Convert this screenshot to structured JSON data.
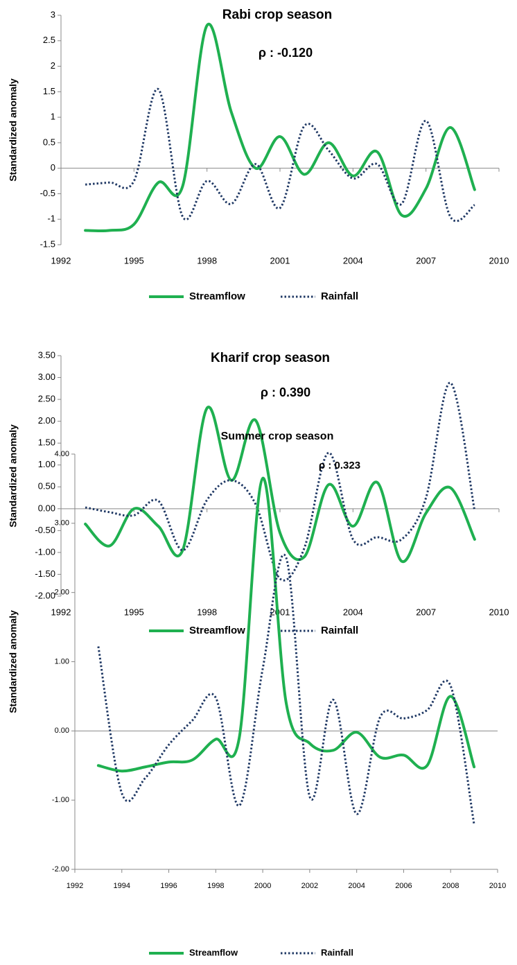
{
  "chart_data": [
    {
      "type": "line",
      "title": "Rabi crop season",
      "annotation": "ρ : -0.120",
      "y_label": "Standardized anomaly",
      "x": [
        1993,
        1994,
        1995,
        1996,
        1997,
        1998,
        1999,
        2000,
        2001,
        2002,
        2003,
        2004,
        2005,
        2006,
        2007,
        2008,
        2009
      ],
      "series": [
        {
          "name": "Streamflow",
          "color": "#1fb050",
          "style": "solid",
          "values": [
            -1.22,
            -1.22,
            -1.1,
            -0.28,
            -0.35,
            2.8,
            1.1,
            0.0,
            0.62,
            -0.12,
            0.5,
            -0.15,
            0.32,
            -0.92,
            -0.4,
            0.8,
            -0.42
          ]
        },
        {
          "name": "Rainfall",
          "color": "#1f3864",
          "style": "dotted",
          "values": [
            -0.32,
            -0.28,
            -0.25,
            1.55,
            -0.95,
            -0.25,
            -0.7,
            0.08,
            -0.78,
            0.83,
            0.35,
            -0.2,
            0.08,
            -0.7,
            0.93,
            -0.95,
            -0.72
          ]
        }
      ],
      "xlim": [
        1992,
        2010
      ],
      "xticks": [
        1992,
        1995,
        1998,
        2001,
        2004,
        2007,
        2010
      ],
      "ylim": [
        -1.5,
        3
      ],
      "yticks": [
        -1.5,
        -1,
        -0.5,
        0,
        0.5,
        1,
        1.5,
        2,
        2.5,
        3
      ],
      "legend": "bottom"
    },
    {
      "type": "line",
      "title": "Kharif crop season",
      "annotation": "ρ : 0.390",
      "y_label": "Standardized anomaly",
      "x": [
        1993,
        1994,
        1995,
        1996,
        1997,
        1998,
        1999,
        2000,
        2001,
        2002,
        2003,
        2004,
        2005,
        2006,
        2007,
        2008,
        2009
      ],
      "series": [
        {
          "name": "Streamflow",
          "color": "#1fb050",
          "style": "solid",
          "values": [
            -0.35,
            -0.85,
            0.0,
            -0.4,
            -0.95,
            2.3,
            0.65,
            2.02,
            -0.55,
            -1.1,
            0.55,
            -0.4,
            0.6,
            -1.2,
            -0.1,
            0.48,
            -0.7
          ]
        },
        {
          "name": "Rainfall",
          "color": "#1f3864",
          "style": "dotted",
          "values": [
            0.03,
            -0.08,
            -0.15,
            0.18,
            -0.95,
            0.2,
            0.65,
            0.1,
            -1.6,
            -0.9,
            1.28,
            -0.7,
            -0.65,
            -0.7,
            0.25,
            2.88,
            -0.05
          ]
        }
      ],
      "xlim": [
        1992,
        2010
      ],
      "xticks": [
        1992,
        1995,
        1998,
        2001,
        2004,
        2007,
        2010
      ],
      "ylim": [
        -2,
        3.5
      ],
      "yticks": [
        {
          "value": -2,
          "label": "-2.00"
        },
        {
          "value": -1.5,
          "label": "-1.50"
        },
        {
          "value": -1,
          "label": "-1.00"
        },
        {
          "value": -0.5,
          "label": "-0.50"
        },
        {
          "value": 0,
          "label": "0.00"
        },
        {
          "value": 0.5,
          "label": "0.50"
        },
        {
          "value": 1,
          "label": "1.00"
        },
        {
          "value": 1.5,
          "label": "1.50"
        },
        {
          "value": 2,
          "label": "2.00"
        },
        {
          "value": 2.5,
          "label": "2.50"
        },
        {
          "value": 3,
          "label": "3.00"
        },
        {
          "value": 3.5,
          "label": "3.50"
        }
      ],
      "legend": "bottom"
    },
    {
      "type": "line",
      "title": "Summer crop season",
      "annotation": "ρ : 0.323",
      "y_label": "Standardized anomaly",
      "x": [
        1993,
        1994,
        1995,
        1996,
        1997,
        1998,
        1999,
        2000,
        2001,
        2002,
        2003,
        2004,
        2005,
        2006,
        2007,
        2008,
        2009
      ],
      "series": [
        {
          "name": "Streamflow",
          "color": "#1fb050",
          "style": "solid",
          "values": [
            -0.5,
            -0.58,
            -0.52,
            -0.45,
            -0.42,
            -0.12,
            -0.1,
            3.65,
            0.4,
            -0.18,
            -0.28,
            -0.02,
            -0.38,
            -0.35,
            -0.5,
            0.5,
            -0.52
          ]
        },
        {
          "name": "Rainfall",
          "color": "#1f3864",
          "style": "dotted",
          "values": [
            1.22,
            -0.9,
            -0.68,
            -0.2,
            0.15,
            0.48,
            -1.08,
            0.9,
            2.5,
            -0.95,
            0.45,
            -1.2,
            0.2,
            0.18,
            0.3,
            0.65,
            -1.35
          ]
        }
      ],
      "xlim": [
        1992,
        2010
      ],
      "xticks": [
        1992,
        1994,
        1996,
        1998,
        2000,
        2002,
        2004,
        2006,
        2008,
        2010
      ],
      "ylim": [
        -2,
        4
      ],
      "yticks": [
        {
          "value": -2,
          "label": "-2.00"
        },
        {
          "value": -1,
          "label": "-1.00"
        },
        {
          "value": 0,
          "label": "0.00"
        },
        {
          "value": 1,
          "label": "1.00"
        },
        {
          "value": 2,
          "label": "2.00"
        },
        {
          "value": 3,
          "label": "3.00"
        },
        {
          "value": 4,
          "label": "4.00"
        }
      ],
      "legend": "bottom"
    }
  ]
}
